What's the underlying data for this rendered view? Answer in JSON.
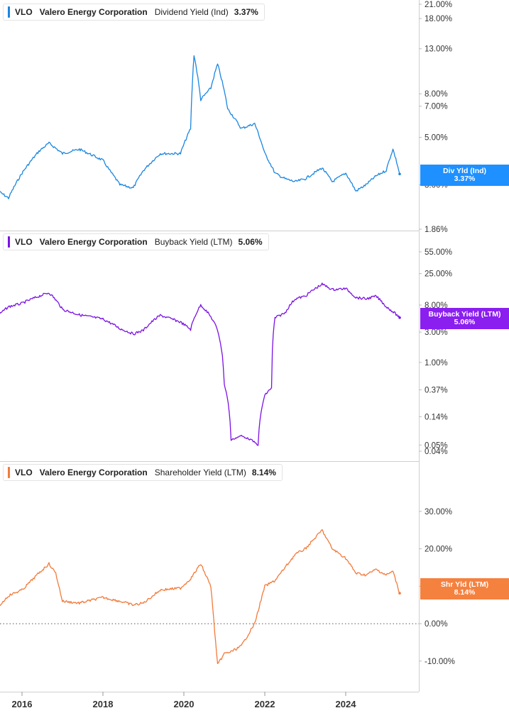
{
  "panels": [
    {
      "ticker": "VLO",
      "company": "Valero Energy Corporation",
      "metric": "Dividend Yield (Ind)",
      "value": "3.37%",
      "color": "#1a86e0",
      "flag": {
        "label": "Div Yld (Ind)",
        "value": "3.37%",
        "color": "#1e90ff"
      }
    },
    {
      "ticker": "VLO",
      "company": "Valero Energy Corporation",
      "metric": "Buyback Yield (LTM)",
      "value": "5.06%",
      "color": "#7a12e3",
      "flag": {
        "label": "Buyback Yield (LTM)",
        "value": "5.06%",
        "color": "#8a1ff0"
      }
    },
    {
      "ticker": "VLO",
      "company": "Valero Energy Corporation",
      "metric": "Shareholder Yield (LTM)",
      "value": "8.14%",
      "color": "#f27a3a",
      "flag": {
        "label": "Shr Yld (LTM)",
        "value": "8.14%",
        "color": "#f5813f"
      }
    }
  ],
  "chart_data": [
    {
      "type": "line",
      "title": "VLO Valero Energy Corporation Dividend Yield (Ind) 3.37%",
      "scale": "log",
      "y_tick_labels": [
        "21.00%",
        "18.00%",
        "13.00%",
        "8.00%",
        "7.00%",
        "5.00%",
        "3.00%",
        "1.86%"
      ],
      "y_ticks": [
        21,
        18,
        13,
        8,
        7,
        5,
        3,
        1.86
      ],
      "x_tick_labels": [
        "2016",
        "2018",
        "2020",
        "2022",
        "2024"
      ],
      "x": [
        "2015-06",
        "2015-09",
        "2016-01",
        "2016-06",
        "2016-09",
        "2017-01",
        "2017-06",
        "2018-01",
        "2018-03",
        "2018-06",
        "2018-10",
        "2019-01",
        "2019-06",
        "2019-12",
        "2020-03",
        "2020-04",
        "2020-06",
        "2020-09",
        "2020-11",
        "2021-02",
        "2021-06",
        "2021-10",
        "2022-01",
        "2022-04",
        "2022-07",
        "2022-10",
        "2023-01",
        "2023-06",
        "2023-09",
        "2024-01",
        "2024-04",
        "2024-07",
        "2024-10",
        "2025-01",
        "2025-03",
        "2025-05"
      ],
      "series": [
        {
          "values": [
            2.8,
            2.6,
            3.4,
            4.3,
            4.7,
            4.2,
            4.4,
            3.9,
            3.5,
            3.0,
            2.9,
            3.5,
            4.2,
            4.2,
            5.5,
            12.2,
            7.5,
            8.5,
            11.0,
            6.8,
            5.5,
            5.8,
            4.2,
            3.4,
            3.2,
            3.1,
            3.2,
            3.6,
            3.1,
            3.4,
            2.8,
            3.0,
            3.3,
            3.5,
            4.4,
            3.37
          ]
        }
      ]
    },
    {
      "type": "line",
      "title": "VLO Valero Energy Corporation Buyback Yield (LTM) 5.06%",
      "scale": "log",
      "y_tick_labels": [
        "55.00%",
        "25.00%",
        "8.00%",
        "3.00%",
        "1.00%",
        "0.37%",
        "0.14%",
        "0.05%",
        "0.04%"
      ],
      "y_ticks": [
        55,
        25,
        8,
        3,
        1,
        0.37,
        0.14,
        0.05,
        0.04
      ],
      "x_tick_labels": [
        "2016",
        "2018",
        "2020",
        "2022",
        "2024"
      ],
      "x": [
        "2015-06",
        "2015-09",
        "2016-01",
        "2016-06",
        "2016-09",
        "2017-01",
        "2017-06",
        "2018-01",
        "2018-06",
        "2018-10",
        "2019-01",
        "2019-06",
        "2019-12",
        "2020-03",
        "2020-06",
        "2020-09",
        "2020-11",
        "2021-01",
        "2021-03",
        "2021-06",
        "2021-09",
        "2021-11",
        "2022-01",
        "2022-03",
        "2022-04",
        "2022-07",
        "2022-10",
        "2023-01",
        "2023-06",
        "2023-09",
        "2024-01",
        "2024-04",
        "2024-07",
        "2024-10",
        "2025-01",
        "2025-05"
      ],
      "series": [
        {
          "values": [
            5.5,
            7.5,
            8.5,
            11.0,
            12.5,
            6.8,
            5.6,
            4.8,
            3.4,
            2.8,
            3.2,
            5.5,
            4.3,
            3.3,
            8.0,
            5.2,
            3.2,
            0.45,
            0.06,
            0.07,
            0.06,
            0.05,
            0.3,
            0.4,
            5.0,
            6.0,
            10.0,
            11.0,
            17.0,
            14.0,
            14.5,
            10.5,
            10.0,
            11.0,
            7.5,
            5.06
          ]
        }
      ]
    },
    {
      "type": "line",
      "title": "VLO Valero Energy Corporation Shareholder Yield (LTM) 8.14%",
      "y_tick_labels": [
        "30.00%",
        "20.00%",
        "10.00%",
        "0.00%",
        "-10.00%"
      ],
      "y_ticks": [
        30,
        20,
        10,
        0,
        -10
      ],
      "ylim": [
        -12.5,
        33
      ],
      "x_tick_labels": [
        "2016",
        "2018",
        "2020",
        "2022",
        "2024"
      ],
      "x": [
        "2015-06",
        "2015-09",
        "2016-01",
        "2016-06",
        "2016-09",
        "2016-11",
        "2017-01",
        "2017-06",
        "2018-01",
        "2018-06",
        "2018-10",
        "2019-01",
        "2019-06",
        "2019-12",
        "2020-03",
        "2020-06",
        "2020-09",
        "2020-11",
        "2021-01",
        "2021-03",
        "2021-06",
        "2021-10",
        "2022-01",
        "2022-04",
        "2022-07",
        "2022-10",
        "2023-01",
        "2023-06",
        "2023-09",
        "2024-01",
        "2024-04",
        "2024-07",
        "2024-10",
        "2025-01",
        "2025-03",
        "2025-05"
      ],
      "series": [
        {
          "values": [
            4.5,
            7.5,
            9.0,
            13.5,
            16.0,
            13.5,
            6.0,
            5.5,
            7.0,
            6.0,
            5.0,
            5.5,
            9.0,
            9.5,
            12.0,
            16.0,
            10.0,
            -11.0,
            -8.0,
            -7.5,
            -6.0,
            0.0,
            10.0,
            11.5,
            15.0,
            18.5,
            20.0,
            25.0,
            20.0,
            17.5,
            13.5,
            13.0,
            14.5,
            13.0,
            14.0,
            8.14
          ]
        }
      ]
    }
  ]
}
